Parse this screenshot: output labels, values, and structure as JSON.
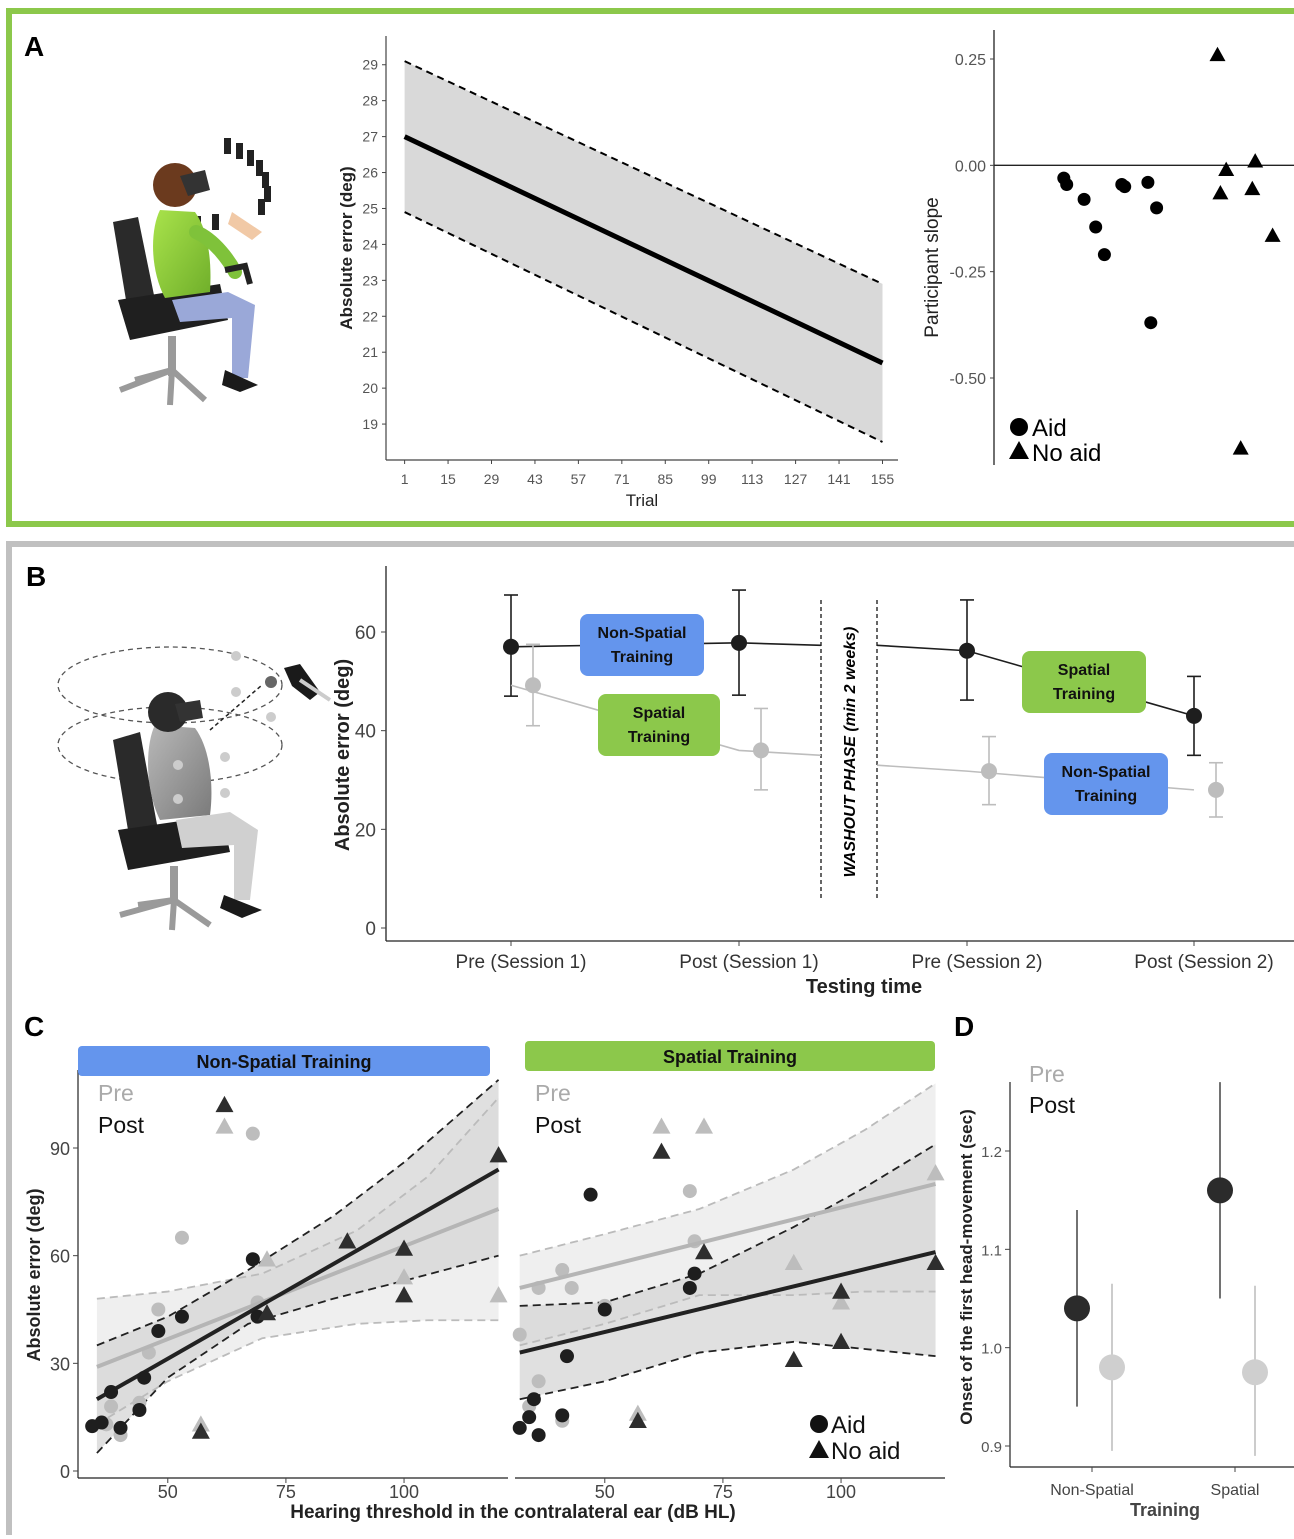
{
  "panels": {
    "A": {
      "label": "A"
    },
    "B": {
      "label": "B"
    },
    "C": {
      "label": "C"
    },
    "D": {
      "label": "D"
    }
  },
  "colors": {
    "panel_a_border": "#8cc84b",
    "panel_b_border": "#c0c0c0",
    "spatial_green": "#8cc84b",
    "nonspatial_blue": "#6495ed",
    "post_black": "#1e1e1e",
    "pre_gray": "#bdbdbd",
    "band_gray": "#d9d9d9"
  },
  "chart_data": [
    {
      "id": "A-line",
      "type": "line",
      "xlabel": "Trial",
      "ylabel": "Absolute error (deg)",
      "x_ticks": [
        "1",
        "15",
        "29",
        "43",
        "57",
        "71",
        "85",
        "99",
        "113",
        "127",
        "141",
        "155"
      ],
      "y_ticks": [
        "19",
        "20",
        "21",
        "22",
        "23",
        "24",
        "25",
        "26",
        "27",
        "28",
        "29"
      ],
      "xlim": [
        -5,
        160
      ],
      "ylim": [
        18,
        29.8
      ],
      "series": [
        {
          "x": [
            1,
            155
          ],
          "y": [
            27.0,
            20.7
          ]
        }
      ],
      "band_upper": {
        "x": [
          1,
          155
        ],
        "y": [
          29.1,
          22.9
        ]
      },
      "band_lower": {
        "x": [
          1,
          155
        ],
        "y": [
          24.9,
          18.5
        ]
      }
    },
    {
      "id": "A-slopes",
      "type": "scatter",
      "ylabel": "Participant slope",
      "y_ticks": [
        "0.25",
        "0.00",
        "-0.25",
        "-0.50"
      ],
      "ylim": [
        -0.7,
        0.28
      ],
      "xlim": [
        0,
        1
      ],
      "legend": {
        "aid": "Aid",
        "no_aid": "No aid",
        "position": "bottom-left"
      },
      "aid": [
        {
          "x": 0.22,
          "y": -0.03
        },
        {
          "x": 0.23,
          "y": -0.045
        },
        {
          "x": 0.29,
          "y": -0.08
        },
        {
          "x": 0.33,
          "y": -0.145
        },
        {
          "x": 0.36,
          "y": -0.21
        },
        {
          "x": 0.42,
          "y": -0.045
        },
        {
          "x": 0.43,
          "y": -0.05
        },
        {
          "x": 0.51,
          "y": -0.04
        },
        {
          "x": 0.54,
          "y": -0.1
        },
        {
          "x": 0.52,
          "y": -0.37
        }
      ],
      "no_aid": [
        {
          "x": 0.75,
          "y": 0.26
        },
        {
          "x": 0.78,
          "y": -0.01
        },
        {
          "x": 0.76,
          "y": -0.065
        },
        {
          "x": 0.88,
          "y": 0.01
        },
        {
          "x": 0.87,
          "y": -0.055
        },
        {
          "x": 0.94,
          "y": -0.165
        },
        {
          "x": 0.83,
          "y": -0.665
        }
      ]
    },
    {
      "id": "B",
      "type": "line",
      "xlabel": "Testing time",
      "ylabel": "Absolute error (deg)",
      "categories": [
        "Pre (Session 1)",
        "Post (Session 1)",
        "Pre (Session 2)",
        "Post (Session 2)"
      ],
      "y_ticks": [
        "0",
        "20",
        "40",
        "60"
      ],
      "ylim": [
        0,
        73
      ],
      "washout_label": "WASHOUT PHASE (min 2 weeks)",
      "boxes": {
        "s1_black": [
          "Non-Spatial",
          "Training"
        ],
        "s1_gray": [
          "Spatial",
          "Training"
        ],
        "s2_black": [
          "Spatial",
          "Training"
        ],
        "s2_gray": [
          "Non-Spatial",
          "Training"
        ]
      },
      "series": [
        {
          "values": [
            57,
            57.8,
            56.2,
            43
          ],
          "lower": [
            47,
            47.2,
            46.2,
            35
          ],
          "upper": [
            67.5,
            68.5,
            66.5,
            51
          ],
          "bridge": [
            57.3,
            57.3
          ]
        },
        {
          "values": [
            49.2,
            36,
            31.8,
            28
          ],
          "lower": [
            41,
            28,
            25,
            22.5
          ],
          "upper": [
            57.5,
            44.5,
            38.8,
            33.5
          ],
          "bridge": [
            35,
            33
          ]
        }
      ]
    },
    {
      "id": "C",
      "type": "scatter",
      "xlabel": "Hearing threshold in the contralateral ear (dB HL)",
      "ylabel": "Absolute error (deg)",
      "x_ticks": [
        "50",
        "75",
        "100"
      ],
      "y_ticks": [
        "0",
        "30",
        "60",
        "90"
      ],
      "xlim": [
        31,
        122
      ],
      "ylim": [
        -2,
        112
      ],
      "legend_pre": "Pre",
      "legend_post": "Post",
      "legend": {
        "aid": "Aid",
        "no_aid": "No aid"
      },
      "facets": [
        {
          "title": "Non-Spatial Training",
          "post_line": [
            [
              35,
              20
            ],
            [
              120,
              84
            ]
          ],
          "pre_line": [
            [
              35,
              29
            ],
            [
              120,
              73
            ]
          ],
          "post_band_upper": [
            [
              35,
              35
            ],
            [
              50,
              43
            ],
            [
              67,
              56
            ],
            [
              85,
              71
            ],
            [
              100,
              86
            ],
            [
              120,
              109
            ]
          ],
          "post_band_lower": [
            [
              35,
              5
            ],
            [
              50,
              26
            ],
            [
              67,
              41
            ],
            [
              85,
              48
            ],
            [
              100,
              53
            ],
            [
              120,
              60
            ]
          ],
          "pre_band_upper": [
            [
              35,
              48
            ],
            [
              50,
              50
            ],
            [
              70,
              55
            ],
            [
              90,
              67
            ],
            [
              105,
              82
            ],
            [
              120,
              104
            ]
          ],
          "pre_band_lower": [
            [
              35,
              13
            ],
            [
              50,
              25
            ],
            [
              70,
              37
            ],
            [
              90,
              41
            ],
            [
              105,
              42
            ],
            [
              120,
              42
            ]
          ],
          "post_aid": [
            [
              34,
              12.5
            ],
            [
              36,
              13.5
            ],
            [
              38,
              22
            ],
            [
              40,
              12
            ],
            [
              44,
              17
            ],
            [
              45,
              26
            ],
            [
              48,
              39
            ],
            [
              53,
              43
            ],
            [
              68,
              59
            ],
            [
              69,
              43
            ]
          ],
          "post_no_aid": [
            [
              57,
              11
            ],
            [
              62,
              102
            ],
            [
              71,
              44
            ],
            [
              88,
              64
            ],
            [
              100,
              62
            ],
            [
              100,
              49
            ],
            [
              120,
              88
            ]
          ],
          "pre_aid": [
            [
              37,
              13
            ],
            [
              38,
              18
            ],
            [
              40,
              10
            ],
            [
              44,
              19
            ],
            [
              46,
              33
            ],
            [
              48,
              45
            ],
            [
              53,
              65
            ],
            [
              68,
              94
            ],
            [
              69,
              47
            ]
          ],
          "pre_no_aid": [
            [
              57,
              13
            ],
            [
              62,
              96
            ],
            [
              71,
              59
            ],
            [
              100,
              54
            ],
            [
              120,
              49
            ]
          ]
        },
        {
          "title": "Spatial Training",
          "post_line": [
            [
              32,
              33
            ],
            [
              120,
              61
            ]
          ],
          "pre_line": [
            [
              32,
              51
            ],
            [
              120,
              80
            ]
          ],
          "post_band_upper": [
            [
              32,
              46
            ],
            [
              50,
              47
            ],
            [
              70,
              55
            ],
            [
              90,
              68
            ],
            [
              105,
              79
            ],
            [
              120,
              91
            ]
          ],
          "post_band_lower": [
            [
              32,
              20
            ],
            [
              50,
              25
            ],
            [
              70,
              33
            ],
            [
              90,
              36
            ],
            [
              105,
              34
            ],
            [
              120,
              32
            ]
          ],
          "pre_band_upper": [
            [
              32,
              60
            ],
            [
              50,
              66
            ],
            [
              70,
              73
            ],
            [
              90,
              84
            ],
            [
              105,
              95
            ],
            [
              120,
              108
            ]
          ],
          "pre_band_lower": [
            [
              32,
              35
            ],
            [
              50,
              41
            ],
            [
              70,
              49
            ],
            [
              90,
              49
            ],
            [
              105,
              50
            ],
            [
              120,
              50
            ]
          ],
          "post_aid": [
            [
              32,
              12
            ],
            [
              34,
              15
            ],
            [
              35,
              20
            ],
            [
              36,
              10
            ],
            [
              41,
              15.5
            ],
            [
              42,
              32
            ],
            [
              47,
              77
            ],
            [
              50,
              45
            ],
            [
              68,
              51
            ],
            [
              69,
              55
            ]
          ],
          "post_no_aid": [
            [
              57,
              14
            ],
            [
              62,
              89
            ],
            [
              71,
              61
            ],
            [
              90,
              31
            ],
            [
              100,
              50
            ],
            [
              100,
              36
            ],
            [
              120,
              58
            ]
          ],
          "pre_aid": [
            [
              32,
              38
            ],
            [
              34,
              18
            ],
            [
              36,
              51
            ],
            [
              36,
              25
            ],
            [
              41,
              14
            ],
            [
              41,
              56
            ],
            [
              43,
              51
            ],
            [
              50,
              46
            ],
            [
              68,
              78
            ],
            [
              69,
              64
            ]
          ],
          "pre_no_aid": [
            [
              57,
              16
            ],
            [
              62,
              96
            ],
            [
              71,
              96
            ],
            [
              90,
              58
            ],
            [
              100,
              47
            ],
            [
              120,
              83
            ]
          ]
        }
      ]
    },
    {
      "id": "D",
      "type": "scatter",
      "xlabel": "Training",
      "ylabel": "Onset of the first head-movement (sec)",
      "categories": [
        "Non-Spatial",
        "Spatial"
      ],
      "y_ticks": [
        "0.9",
        "1.0",
        "1.1",
        "1.2"
      ],
      "ylim": [
        0.876,
        1.265
      ],
      "legend_pre": "Pre",
      "legend_post": "Post",
      "series": [
        {
          "values": [
            1.04,
            1.16
          ],
          "lower": [
            0.94,
            1.05
          ],
          "upper": [
            1.14,
            1.27
          ]
        },
        {
          "values": [
            0.98,
            0.975
          ],
          "lower": [
            0.895,
            0.89
          ],
          "upper": [
            1.065,
            1.063
          ]
        }
      ]
    }
  ]
}
